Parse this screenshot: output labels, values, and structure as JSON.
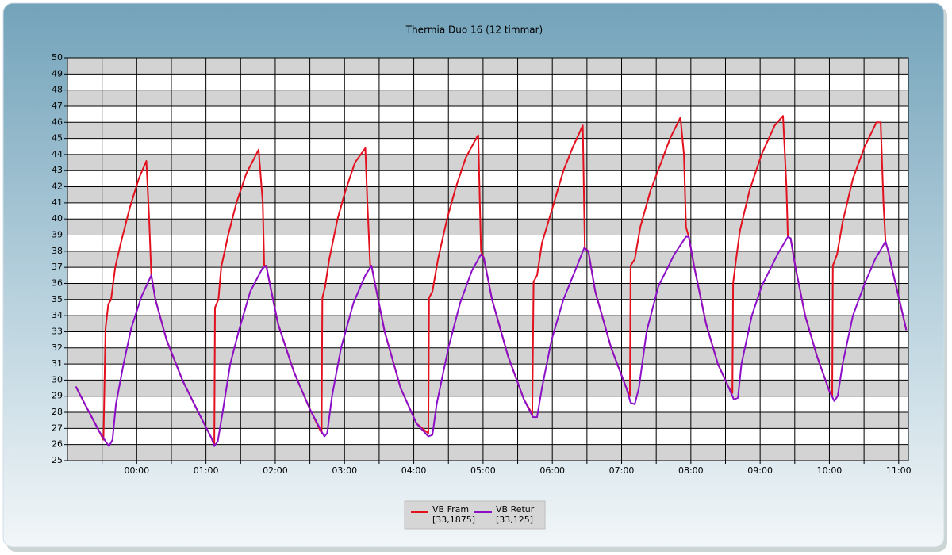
{
  "chart_data": {
    "type": "line",
    "title": "Thermia Duo 16 (12 timmar)",
    "xlim": [
      -1,
      11.14
    ],
    "xticks": [
      {
        "value": 0,
        "label": "00:00"
      },
      {
        "value": 1,
        "label": "01:00"
      },
      {
        "value": 2,
        "label": "02:00"
      },
      {
        "value": 3,
        "label": "03:00"
      },
      {
        "value": 4,
        "label": "04:00"
      },
      {
        "value": 5,
        "label": "05:00"
      },
      {
        "value": 6,
        "label": "06:00"
      },
      {
        "value": 7,
        "label": "07:00"
      },
      {
        "value": 8,
        "label": "08:00"
      },
      {
        "value": 9,
        "label": "09:00"
      },
      {
        "value": 10,
        "label": "10:00"
      },
      {
        "value": 11,
        "label": "11:00"
      }
    ],
    "xminorticks": [
      -0.5,
      0.5,
      1.5,
      2.5,
      3.5,
      4.5,
      5.5,
      6.5,
      7.5,
      8.5,
      9.5,
      10.5
    ],
    "ylim": [
      25,
      50
    ],
    "yticks": [
      25,
      26,
      27,
      28,
      29,
      30,
      31,
      32,
      33,
      34,
      35,
      36,
      37,
      38,
      39,
      40,
      41,
      42,
      43,
      44,
      45,
      46,
      47,
      48,
      49,
      50
    ],
    "grid": true,
    "banded": true,
    "legend": "bottom",
    "series": [
      {
        "name": "VB Fram",
        "legend_value": "[33,1875]",
        "color": "#e3101e",
        "x": [
          -0.88,
          -0.71,
          -0.54,
          -0.48,
          -0.45,
          -0.41,
          -0.37,
          -0.31,
          -0.23,
          -0.1,
          0.03,
          0.14,
          0.18,
          0.21,
          0.27,
          0.43,
          0.66,
          0.89,
          1.08,
          1.12,
          1.13,
          1.18,
          1.22,
          1.32,
          1.44,
          1.58,
          1.76,
          1.82,
          1.84,
          1.87,
          1.92,
          2.04,
          2.27,
          2.5,
          2.67,
          2.68,
          2.72,
          2.78,
          2.9,
          3.01,
          3.15,
          3.3,
          3.33,
          3.37,
          3.39,
          3.43,
          3.58,
          3.81,
          4.04,
          4.21,
          4.22,
          4.27,
          4.35,
          4.48,
          4.61,
          4.75,
          4.9,
          4.93,
          4.97,
          4.99,
          5.01,
          5.13,
          5.36,
          5.59,
          5.71,
          5.73,
          5.78,
          5.85,
          5.99,
          6.16,
          6.3,
          6.44,
          6.47,
          6.52,
          6.62,
          6.85,
          7.07,
          7.12,
          7.13,
          7.19,
          7.27,
          7.42,
          7.57,
          7.7,
          7.85,
          7.9,
          7.93,
          7.97,
          8.05,
          8.22,
          8.39,
          8.54,
          8.6,
          8.61,
          8.65,
          8.71,
          8.85,
          9.02,
          9.21,
          9.33,
          9.38,
          9.4,
          9.44,
          9.51,
          9.65,
          9.82,
          10.0,
          10.04,
          10.05,
          10.11,
          10.19,
          10.34,
          10.51,
          10.68,
          10.74,
          10.78,
          10.81,
          10.85,
          10.91,
          11.02,
          11.11
        ],
        "values": [
          29.6,
          28.2,
          26.8,
          26.3,
          33.2,
          34.7,
          35,
          37,
          38.5,
          40.7,
          42.5,
          43.6,
          40,
          36.5,
          35,
          32.5,
          30,
          28,
          26.4,
          26,
          34.5,
          35,
          37,
          39,
          41,
          42.8,
          44.3,
          41,
          37.1,
          37.1,
          36,
          33.5,
          30.5,
          28.2,
          26.7,
          35.1,
          35.8,
          37.5,
          40,
          41.7,
          43.5,
          44.4,
          41,
          37.1,
          37.1,
          36.2,
          33,
          29.5,
          27.3,
          26.7,
          35.1,
          35.5,
          37.5,
          40,
          42,
          43.8,
          45,
          45.2,
          38,
          37.8,
          37.6,
          35,
          31.5,
          28.8,
          27.9,
          36.1,
          36.5,
          38.5,
          40.5,
          43,
          44.5,
          45.8,
          38.2,
          38,
          35.5,
          32,
          29.5,
          29,
          37.1,
          37.5,
          39.5,
          41.8,
          43.5,
          45,
          46.3,
          44,
          39.5,
          38.9,
          37,
          33.5,
          31,
          29.6,
          29.2,
          36,
          37.4,
          39.3,
          41.8,
          44,
          45.8,
          46.4,
          42,
          38.9,
          38.8,
          37,
          34,
          31.5,
          29.3,
          29,
          37.1,
          37.8,
          39.8,
          42.5,
          44.5,
          46,
          46,
          41,
          38.6,
          38,
          36.8,
          34.8,
          33.1
        ]
      },
      {
        "name": "VB Retur",
        "legend_value": "[33,125]",
        "color": "#8c0fc8",
        "x": [
          -0.88,
          -0.71,
          -0.54,
          -0.45,
          -0.4,
          -0.35,
          -0.3,
          -0.19,
          -0.08,
          0.07,
          0.21,
          0.27,
          0.43,
          0.66,
          0.89,
          1.08,
          1.12,
          1.17,
          1.24,
          1.35,
          1.47,
          1.64,
          1.81,
          1.87,
          1.92,
          2.04,
          2.27,
          2.5,
          2.67,
          2.71,
          2.75,
          2.82,
          2.95,
          3.13,
          3.3,
          3.39,
          3.43,
          3.58,
          3.81,
          4.04,
          4.21,
          4.27,
          4.33,
          4.5,
          4.67,
          4.84,
          4.97,
          5.01,
          5.13,
          5.36,
          5.59,
          5.72,
          5.78,
          5.85,
          5.99,
          6.16,
          6.33,
          6.46,
          6.52,
          6.62,
          6.85,
          7.07,
          7.13,
          7.19,
          7.25,
          7.36,
          7.53,
          7.76,
          7.93,
          7.97,
          8.05,
          8.22,
          8.39,
          8.54,
          8.62,
          8.68,
          8.73,
          8.88,
          9.02,
          9.25,
          9.4,
          9.44,
          9.51,
          9.65,
          9.82,
          10.0,
          10.07,
          10.12,
          10.19,
          10.34,
          10.51,
          10.66,
          10.81,
          10.85,
          10.91,
          11.02,
          11.11
        ],
        "values": [
          29.6,
          28.2,
          26.8,
          26.2,
          25.9,
          26.3,
          28.5,
          31,
          33.2,
          35.2,
          36.5,
          35,
          32.5,
          30,
          28,
          26.4,
          25.9,
          26.2,
          28,
          31,
          33,
          35.5,
          36.9,
          37.1,
          36,
          33.5,
          30.5,
          28.2,
          26.8,
          26.5,
          26.7,
          29,
          32,
          34.8,
          36.5,
          37.1,
          36.2,
          33,
          29.5,
          27.3,
          26.5,
          26.6,
          28.5,
          32,
          34.8,
          36.8,
          37.8,
          37.6,
          35,
          31.5,
          28.8,
          27.7,
          27.7,
          29.5,
          32.5,
          35,
          36.8,
          38.2,
          38,
          35.5,
          32,
          29.5,
          28.6,
          28.5,
          29.5,
          33,
          35.8,
          37.8,
          38.9,
          38.9,
          37,
          33.5,
          31,
          29.6,
          28.8,
          28.9,
          31,
          34,
          35.8,
          37.8,
          38.9,
          38.8,
          37,
          34,
          31.5,
          29.3,
          28.7,
          29,
          31,
          34,
          36,
          37.5,
          38.6,
          38,
          36.8,
          34.8,
          33.1
        ]
      }
    ]
  }
}
